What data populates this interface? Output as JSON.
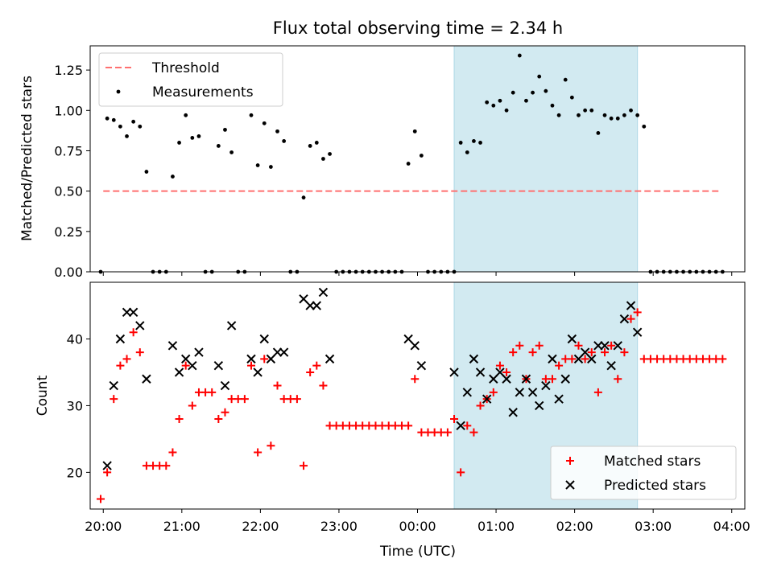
{
  "title": "Flux total observing time = 2.34 h",
  "colors": {
    "threshold": "#ff7070",
    "measurement": "#000000",
    "matched": "#ff0000",
    "predicted": "#000000",
    "highlight": "#add8e6"
  },
  "chart_data": [
    {
      "type": "scatter",
      "panel": "top",
      "ylabel": "Matched/Predicted stars",
      "xlim": [
        "19:50",
        "04:10"
      ],
      "ylim": [
        0,
        1.4
      ],
      "yticks": [
        "0.00",
        "0.25",
        "0.50",
        "0.75",
        "1.00",
        "1.25"
      ],
      "legend_position": "upper-left",
      "highlight_span": [
        "00:28",
        "02:48"
      ],
      "threshold": {
        "name": "Threshold",
        "value": 0.5,
        "x_range": [
          "20:00",
          "03:50"
        ]
      },
      "series": [
        {
          "name": "Measurements",
          "points": [
            [
              "19:58",
              0
            ],
            [
              "20:03",
              0.95
            ],
            [
              "20:08",
              0.94
            ],
            [
              "20:13",
              0.9
            ],
            [
              "20:18",
              0.84
            ],
            [
              "20:23",
              0.93
            ],
            [
              "20:28",
              0.9
            ],
            [
              "20:33",
              0.62
            ],
            [
              "20:38",
              0
            ],
            [
              "20:43",
              0
            ],
            [
              "20:48",
              0
            ],
            [
              "20:53",
              0.59
            ],
            [
              "20:58",
              0.8
            ],
            [
              "21:03",
              0.97
            ],
            [
              "21:08",
              0.83
            ],
            [
              "21:13",
              0.84
            ],
            [
              "21:18",
              0
            ],
            [
              "21:23",
              0
            ],
            [
              "21:28",
              0.78
            ],
            [
              "21:33",
              0.88
            ],
            [
              "21:38",
              0.74
            ],
            [
              "21:43",
              0
            ],
            [
              "21:48",
              0
            ],
            [
              "21:53",
              0.97
            ],
            [
              "21:58",
              0.66
            ],
            [
              "22:03",
              0.92
            ],
            [
              "22:08",
              0.65
            ],
            [
              "22:13",
              0.87
            ],
            [
              "22:18",
              0.81
            ],
            [
              "22:23",
              0
            ],
            [
              "22:28",
              0
            ],
            [
              "22:33",
              0.46
            ],
            [
              "22:38",
              0.78
            ],
            [
              "22:43",
              0.8
            ],
            [
              "22:48",
              0.7
            ],
            [
              "22:53",
              0.73
            ],
            [
              "22:58",
              0
            ],
            [
              "23:03",
              0
            ],
            [
              "23:08",
              0
            ],
            [
              "23:13",
              0
            ],
            [
              "23:18",
              0
            ],
            [
              "23:23",
              0
            ],
            [
              "23:28",
              0
            ],
            [
              "23:33",
              0
            ],
            [
              "23:38",
              0
            ],
            [
              "23:43",
              0
            ],
            [
              "23:48",
              0
            ],
            [
              "23:53",
              0.67
            ],
            [
              "23:58",
              0.87
            ],
            [
              "00:03",
              0.72
            ],
            [
              "00:08",
              0
            ],
            [
              "00:13",
              0
            ],
            [
              "00:18",
              0
            ],
            [
              "00:23",
              0
            ],
            [
              "00:28",
              0
            ],
            [
              "00:33",
              0.8
            ],
            [
              "00:38",
              0.74
            ],
            [
              "00:43",
              0.81
            ],
            [
              "00:48",
              0.8
            ],
            [
              "00:53",
              1.05
            ],
            [
              "00:58",
              1.03
            ],
            [
              "01:03",
              1.06
            ],
            [
              "01:08",
              1.0
            ],
            [
              "01:13",
              1.11
            ],
            [
              "01:18",
              1.34
            ],
            [
              "01:23",
              1.06
            ],
            [
              "01:28",
              1.11
            ],
            [
              "01:33",
              1.21
            ],
            [
              "01:38",
              1.12
            ],
            [
              "01:43",
              1.03
            ],
            [
              "01:48",
              0.97
            ],
            [
              "01:53",
              1.19
            ],
            [
              "01:58",
              1.08
            ],
            [
              "02:03",
              0.97
            ],
            [
              "02:08",
              1.0
            ],
            [
              "02:13",
              1.0
            ],
            [
              "02:18",
              0.86
            ],
            [
              "02:23",
              0.97
            ],
            [
              "02:28",
              0.95
            ],
            [
              "02:33",
              0.95
            ],
            [
              "02:38",
              0.97
            ],
            [
              "02:43",
              1.0
            ],
            [
              "02:48",
              0.97
            ],
            [
              "02:53",
              0.9
            ],
            [
              "02:58",
              0
            ],
            [
              "03:03",
              0
            ],
            [
              "03:08",
              0
            ],
            [
              "03:13",
              0
            ],
            [
              "03:18",
              0
            ],
            [
              "03:23",
              0
            ],
            [
              "03:28",
              0
            ],
            [
              "03:33",
              0
            ],
            [
              "03:38",
              0
            ],
            [
              "03:43",
              0
            ],
            [
              "03:48",
              0
            ],
            [
              "03:53",
              0
            ]
          ]
        }
      ]
    },
    {
      "type": "scatter",
      "panel": "bottom",
      "ylabel": "Count",
      "xlabel": "Time (UTC)",
      "xlim": [
        "19:50",
        "04:10"
      ],
      "ylim": [
        14.5,
        48.5
      ],
      "yticks": [
        "20",
        "30",
        "40"
      ],
      "xticks": [
        "20:00",
        "21:00",
        "22:00",
        "23:00",
        "00:00",
        "01:00",
        "02:00",
        "03:00",
        "04:00"
      ],
      "legend_position": "lower-right",
      "highlight_span": [
        "00:28",
        "02:48"
      ],
      "series": [
        {
          "name": "Matched stars",
          "marker": "plus",
          "points": [
            [
              "19:58",
              16
            ],
            [
              "20:03",
              20
            ],
            [
              "20:08",
              31
            ],
            [
              "20:13",
              36
            ],
            [
              "20:18",
              37
            ],
            [
              "20:23",
              41
            ],
            [
              "20:28",
              38
            ],
            [
              "20:33",
              21
            ],
            [
              "20:38",
              21
            ],
            [
              "20:43",
              21
            ],
            [
              "20:48",
              21
            ],
            [
              "20:53",
              23
            ],
            [
              "20:58",
              28
            ],
            [
              "21:03",
              36
            ],
            [
              "21:08",
              30
            ],
            [
              "21:13",
              32
            ],
            [
              "21:18",
              32
            ],
            [
              "21:23",
              32
            ],
            [
              "21:28",
              28
            ],
            [
              "21:33",
              29
            ],
            [
              "21:38",
              31
            ],
            [
              "21:43",
              31
            ],
            [
              "21:48",
              31
            ],
            [
              "21:53",
              36
            ],
            [
              "21:58",
              23
            ],
            [
              "22:03",
              37
            ],
            [
              "22:08",
              24
            ],
            [
              "22:13",
              33
            ],
            [
              "22:18",
              31
            ],
            [
              "22:23",
              31
            ],
            [
              "22:28",
              31
            ],
            [
              "22:33",
              21
            ],
            [
              "22:38",
              35
            ],
            [
              "22:43",
              36
            ],
            [
              "22:48",
              33
            ],
            [
              "22:53",
              27
            ],
            [
              "22:58",
              27
            ],
            [
              "23:03",
              27
            ],
            [
              "23:08",
              27
            ],
            [
              "23:13",
              27
            ],
            [
              "23:18",
              27
            ],
            [
              "23:23",
              27
            ],
            [
              "23:28",
              27
            ],
            [
              "23:33",
              27
            ],
            [
              "23:38",
              27
            ],
            [
              "23:43",
              27
            ],
            [
              "23:48",
              27
            ],
            [
              "23:53",
              27
            ],
            [
              "23:58",
              34
            ],
            [
              "00:03",
              26
            ],
            [
              "00:08",
              26
            ],
            [
              "00:13",
              26
            ],
            [
              "00:18",
              26
            ],
            [
              "00:23",
              26
            ],
            [
              "00:28",
              28
            ],
            [
              "00:33",
              20
            ],
            [
              "00:38",
              27
            ],
            [
              "00:43",
              26
            ],
            [
              "00:48",
              30
            ],
            [
              "00:53",
              31
            ],
            [
              "00:58",
              32
            ],
            [
              "01:03",
              36
            ],
            [
              "01:08",
              35
            ],
            [
              "01:13",
              38
            ],
            [
              "01:18",
              39
            ],
            [
              "01:23",
              34
            ],
            [
              "01:28",
              38
            ],
            [
              "01:33",
              39
            ],
            [
              "01:38",
              34
            ],
            [
              "01:43",
              34
            ],
            [
              "01:48",
              36
            ],
            [
              "01:53",
              37
            ],
            [
              "01:58",
              37
            ],
            [
              "02:03",
              39
            ],
            [
              "02:08",
              37
            ],
            [
              "02:13",
              38
            ],
            [
              "02:18",
              32
            ],
            [
              "02:23",
              38
            ],
            [
              "02:28",
              39
            ],
            [
              "02:33",
              34
            ],
            [
              "02:38",
              38
            ],
            [
              "02:43",
              43
            ],
            [
              "02:48",
              44
            ],
            [
              "02:53",
              37
            ],
            [
              "02:58",
              37
            ],
            [
              "03:03",
              37
            ],
            [
              "03:08",
              37
            ],
            [
              "03:13",
              37
            ],
            [
              "03:18",
              37
            ],
            [
              "03:23",
              37
            ],
            [
              "03:28",
              37
            ],
            [
              "03:33",
              37
            ],
            [
              "03:38",
              37
            ],
            [
              "03:43",
              37
            ],
            [
              "03:48",
              37
            ],
            [
              "03:53",
              37
            ]
          ]
        },
        {
          "name": "Predicted stars",
          "marker": "x",
          "points": [
            [
              "20:03",
              21
            ],
            [
              "20:08",
              33
            ],
            [
              "20:13",
              40
            ],
            [
              "20:18",
              44
            ],
            [
              "20:23",
              44
            ],
            [
              "20:28",
              42
            ],
            [
              "20:33",
              34
            ],
            [
              "20:53",
              39
            ],
            [
              "20:58",
              35
            ],
            [
              "21:03",
              37
            ],
            [
              "21:08",
              36
            ],
            [
              "21:13",
              38
            ],
            [
              "21:28",
              36
            ],
            [
              "21:33",
              33
            ],
            [
              "21:38",
              42
            ],
            [
              "21:53",
              37
            ],
            [
              "21:58",
              35
            ],
            [
              "22:03",
              40
            ],
            [
              "22:08",
              37
            ],
            [
              "22:13",
              38
            ],
            [
              "22:18",
              38
            ],
            [
              "22:33",
              46
            ],
            [
              "22:38",
              45
            ],
            [
              "22:43",
              45
            ],
            [
              "22:48",
              47
            ],
            [
              "22:53",
              37
            ],
            [
              "23:53",
              40
            ],
            [
              "23:58",
              39
            ],
            [
              "00:03",
              36
            ],
            [
              "00:28",
              35
            ],
            [
              "00:33",
              27
            ],
            [
              "00:38",
              32
            ],
            [
              "00:43",
              37
            ],
            [
              "00:48",
              35
            ],
            [
              "00:53",
              31
            ],
            [
              "00:58",
              34
            ],
            [
              "01:03",
              35
            ],
            [
              "01:08",
              34
            ],
            [
              "01:13",
              29
            ],
            [
              "01:18",
              32
            ],
            [
              "01:23",
              34
            ],
            [
              "01:28",
              32
            ],
            [
              "01:33",
              30
            ],
            [
              "01:38",
              33
            ],
            [
              "01:43",
              37
            ],
            [
              "01:48",
              31
            ],
            [
              "01:53",
              34
            ],
            [
              "01:58",
              40
            ],
            [
              "02:03",
              37
            ],
            [
              "02:08",
              38
            ],
            [
              "02:13",
              37
            ],
            [
              "02:18",
              39
            ],
            [
              "02:23",
              39
            ],
            [
              "02:28",
              36
            ],
            [
              "02:33",
              39
            ],
            [
              "02:38",
              43
            ],
            [
              "02:43",
              45
            ],
            [
              "02:48",
              41
            ]
          ]
        }
      ]
    }
  ]
}
